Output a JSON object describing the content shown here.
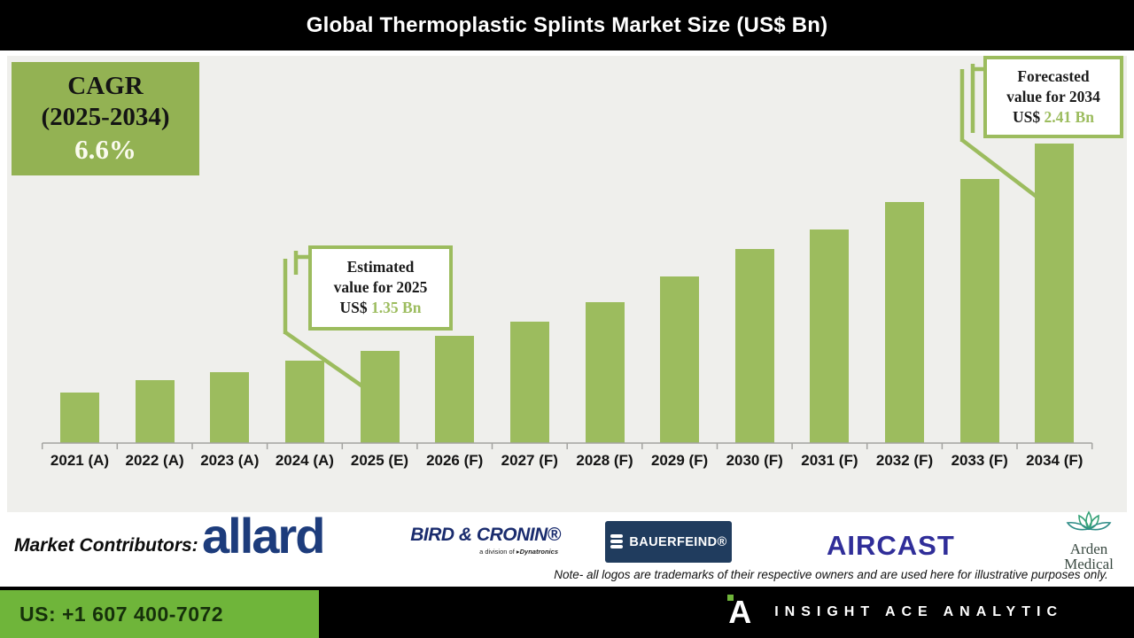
{
  "header": {
    "title": "Global Thermoplastic Splints Market Size (US$ Bn)"
  },
  "cagr_box": {
    "line1": "CAGR",
    "line2": "(2025-2034)",
    "value": "6.6%"
  },
  "callouts": {
    "estimated": {
      "line1": "Estimated",
      "line2": "value for 2025",
      "prefix": "US$ ",
      "value": "1.35 Bn"
    },
    "forecasted": {
      "line1": "Forecasted",
      "line2": "value for 2034",
      "prefix": "US$ ",
      "value": "2.41 Bn"
    }
  },
  "chart_data": {
    "type": "bar",
    "title": "Global Thermoplastic Splints Market Size (US$ Bn)",
    "xlabel": "",
    "ylabel": "",
    "unit": "US$ Bn",
    "categories": [
      "2021 (A)",
      "2022 (A)",
      "2023 (A)",
      "2024 (A)",
      "2025 (E)",
      "2026 (F)",
      "2027 (F)",
      "2028 (F)",
      "2029 (F)",
      "2030 (F)",
      "2031 (F)",
      "2032 (F)",
      "2033 (F)",
      "2034 (F)"
    ],
    "values": [
      1.14,
      1.2,
      1.24,
      1.3,
      1.35,
      1.43,
      1.5,
      1.6,
      1.73,
      1.87,
      1.97,
      2.11,
      2.23,
      2.41
    ],
    "baseline_value": 0.88,
    "bar_color": "#9cbc5e",
    "y_axis_visible": false,
    "grid": false,
    "cagr": {
      "label": "CAGR (2025-2034)",
      "value": "6.6%"
    },
    "annotations": [
      {
        "target": "2025 (E)",
        "text": "Estimated value for 2025 US$ 1.35 Bn"
      },
      {
        "target": "2034 (F)",
        "text": "Forecasted value for 2034 US$ 2.41 Bn"
      }
    ]
  },
  "contributors": {
    "label": "Market Contributors:",
    "logos": [
      {
        "name": "allard"
      },
      {
        "name": "BIRD & CRONIN®",
        "sub_prefix": "a division of ",
        "sub_name": "Dynatronics"
      },
      {
        "name": "BAUERFEIND®"
      },
      {
        "name": "AIRCAST"
      },
      {
        "name_line1": "Arden",
        "name_line2": "Medical"
      }
    ],
    "note": "Note- all logos are trademarks of their respective owners and are used here for illustrative purposes only."
  },
  "footer": {
    "phone": "US: +1 607 400-7072",
    "brand": "INSIGHT ACE ANALYTIC",
    "brand_glyph": "A"
  },
  "colors": {
    "bar_green": "#9cbc5e",
    "cagr_green": "#93b253",
    "footer_green": "#6fb53a",
    "navy": "#1d3c7c",
    "aircast_blue": "#302e99",
    "chart_bg": "#efefec",
    "black": "#000000"
  }
}
